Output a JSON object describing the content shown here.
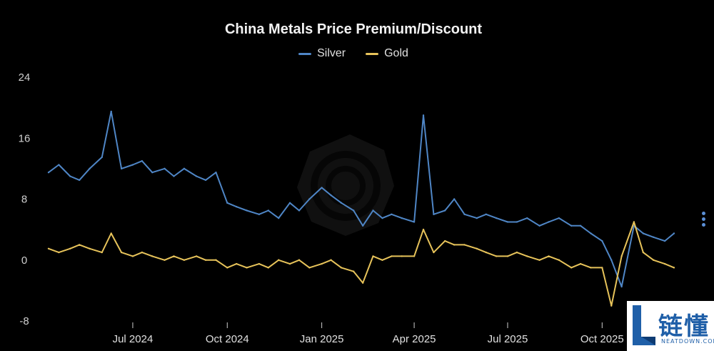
{
  "chart_data": {
    "type": "line",
    "title": "China Metals Price Premium/Discount",
    "xlabel": "",
    "ylabel": "",
    "ylim": [
      -8,
      24
    ],
    "yticks": [
      24,
      16,
      8,
      0,
      -8
    ],
    "ytick_labels": [
      "24",
      "16",
      "8",
      "0",
      "-8"
    ],
    "xlim": [
      "2024-04-10",
      "2025-12-10"
    ],
    "xticks": [
      "2024-07-01",
      "2024-10-01",
      "2025-01-01",
      "2025-04-01",
      "2025-07-01",
      "2025-10-01"
    ],
    "xtick_labels": [
      "Jul 2024",
      "Oct 2024",
      "Jan 2025",
      "Apr 2025",
      "Jul 2025",
      "Oct 2025"
    ],
    "legend_position": "top-center",
    "grid": false,
    "series": [
      {
        "name": "Silver",
        "color": "#4f86c6",
        "x": [
          "2024-04-10",
          "2024-04-20",
          "2024-05-01",
          "2024-05-10",
          "2024-05-20",
          "2024-06-01",
          "2024-06-10",
          "2024-06-20",
          "2024-07-01",
          "2024-07-10",
          "2024-07-20",
          "2024-08-01",
          "2024-08-10",
          "2024-08-20",
          "2024-09-01",
          "2024-09-10",
          "2024-09-20",
          "2024-10-01",
          "2024-10-10",
          "2024-10-20",
          "2024-11-01",
          "2024-11-10",
          "2024-11-20",
          "2024-12-01",
          "2024-12-10",
          "2024-12-20",
          "2025-01-01",
          "2025-01-10",
          "2025-01-20",
          "2025-02-01",
          "2025-02-10",
          "2025-02-20",
          "2025-03-01",
          "2025-03-10",
          "2025-03-20",
          "2025-04-01",
          "2025-04-10",
          "2025-04-20",
          "2025-05-01",
          "2025-05-10",
          "2025-05-20",
          "2025-06-01",
          "2025-06-10",
          "2025-06-20",
          "2025-07-01",
          "2025-07-10",
          "2025-07-20",
          "2025-08-01",
          "2025-08-10",
          "2025-08-20",
          "2025-09-01",
          "2025-09-10",
          "2025-09-20",
          "2025-10-01",
          "2025-10-10",
          "2025-10-20",
          "2025-11-01",
          "2025-11-10",
          "2025-11-20",
          "2025-12-01",
          "2025-12-10"
        ],
        "values": [
          11.5,
          12.5,
          11.0,
          10.5,
          12.0,
          13.5,
          19.5,
          12.0,
          12.5,
          13.0,
          11.5,
          12.0,
          11.0,
          12.0,
          11.0,
          10.5,
          11.5,
          7.5,
          7.0,
          6.5,
          6.0,
          6.5,
          5.5,
          7.5,
          6.5,
          8.0,
          9.5,
          8.5,
          7.5,
          6.5,
          4.5,
          6.5,
          5.5,
          6.0,
          5.5,
          5.0,
          19.0,
          6.0,
          6.5,
          8.0,
          6.0,
          5.5,
          6.0,
          5.5,
          5.0,
          5.0,
          5.5,
          4.5,
          5.0,
          5.5,
          4.5,
          4.5,
          3.5,
          2.5,
          0.0,
          -3.5,
          4.5,
          3.5,
          3.0,
          2.5,
          3.5
        ]
      },
      {
        "name": "Gold",
        "color": "#e7c35a",
        "x": [
          "2024-04-10",
          "2024-04-20",
          "2024-05-01",
          "2024-05-10",
          "2024-05-20",
          "2024-06-01",
          "2024-06-10",
          "2024-06-20",
          "2024-07-01",
          "2024-07-10",
          "2024-07-20",
          "2024-08-01",
          "2024-08-10",
          "2024-08-20",
          "2024-09-01",
          "2024-09-10",
          "2024-09-20",
          "2024-10-01",
          "2024-10-10",
          "2024-10-20",
          "2024-11-01",
          "2024-11-10",
          "2024-11-20",
          "2024-12-01",
          "2024-12-10",
          "2024-12-20",
          "2025-01-01",
          "2025-01-10",
          "2025-01-20",
          "2025-02-01",
          "2025-02-10",
          "2025-02-20",
          "2025-03-01",
          "2025-03-10",
          "2025-03-20",
          "2025-04-01",
          "2025-04-10",
          "2025-04-20",
          "2025-05-01",
          "2025-05-10",
          "2025-05-20",
          "2025-06-01",
          "2025-06-10",
          "2025-06-20",
          "2025-07-01",
          "2025-07-10",
          "2025-07-20",
          "2025-08-01",
          "2025-08-10",
          "2025-08-20",
          "2025-09-01",
          "2025-09-10",
          "2025-09-20",
          "2025-10-01",
          "2025-10-10",
          "2025-10-20",
          "2025-11-01",
          "2025-11-10",
          "2025-11-20",
          "2025-12-01",
          "2025-12-10"
        ],
        "values": [
          1.5,
          1.0,
          1.5,
          2.0,
          1.5,
          1.0,
          3.5,
          1.0,
          0.5,
          1.0,
          0.5,
          0.0,
          0.5,
          0.0,
          0.5,
          0.0,
          0.0,
          -1.0,
          -0.5,
          -1.0,
          -0.5,
          -1.0,
          0.0,
          -0.5,
          0.0,
          -1.0,
          -0.5,
          0.0,
          -1.0,
          -1.5,
          -3.0,
          0.5,
          0.0,
          0.5,
          0.5,
          0.5,
          4.0,
          1.0,
          2.5,
          2.0,
          2.0,
          1.5,
          1.0,
          0.5,
          0.5,
          1.0,
          0.5,
          0.0,
          0.5,
          0.0,
          -1.0,
          -0.5,
          -1.0,
          -1.0,
          -6.0,
          0.5,
          5.0,
          1.0,
          0.0,
          -0.5,
          -1.0
        ]
      }
    ]
  },
  "logo": {
    "cn": "链懂",
    "en": "NEATDOWN.COM"
  },
  "colors": {
    "background": "#000000",
    "silver": "#4f86c6",
    "gold": "#e7c35a",
    "axis_text": "#cfcfcf"
  }
}
